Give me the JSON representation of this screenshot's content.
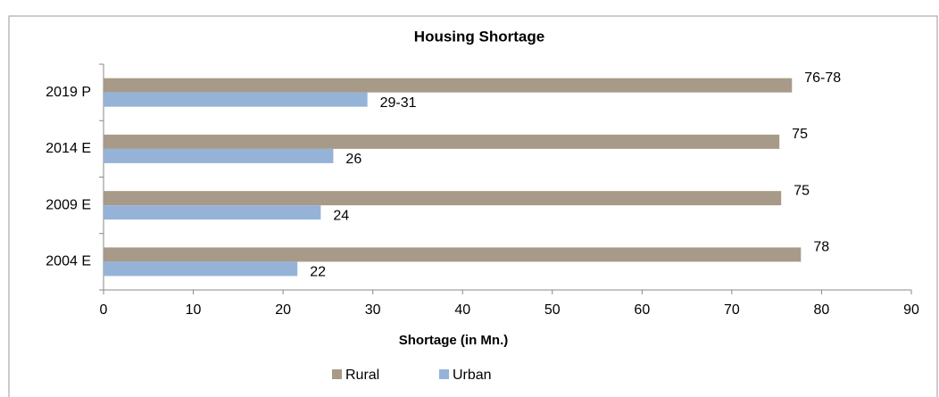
{
  "chart_data": {
    "type": "hbar",
    "title": "Housing Shortage",
    "x_label": "Shortage (in Mn.)",
    "categories": [
      "2019 P",
      "2014 E",
      "2009 E",
      "2004 E"
    ],
    "series": [
      {
        "name": "Rural",
        "color": "#a89a88",
        "values": [
          76.7,
          75.3,
          75.5,
          77.7
        ],
        "value_labels": [
          "76-78",
          "75",
          "75",
          "78"
        ]
      },
      {
        "name": "Urban",
        "color": "#95b3d7",
        "values": [
          29.4,
          25.6,
          24.2,
          21.6
        ],
        "value_labels": [
          "29-31",
          "26",
          "24",
          "22"
        ]
      }
    ],
    "xlim": [
      0,
      90
    ],
    "xticks": [
      0,
      10,
      20,
      30,
      40,
      50,
      60,
      70,
      80,
      90
    ],
    "grid": false,
    "legend": "bottom"
  }
}
